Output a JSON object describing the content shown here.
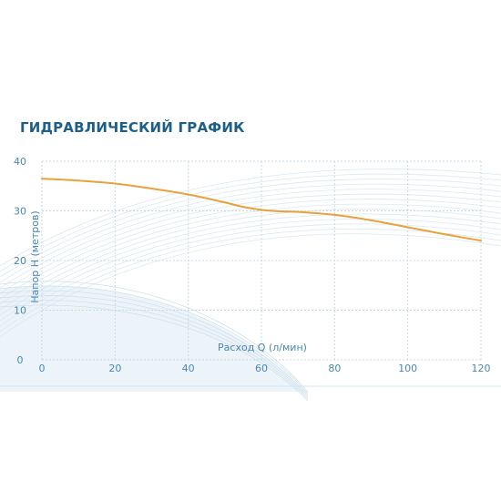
{
  "colors": {
    "title": "#1d5f86",
    "curve": "#e8a23c",
    "grid": "#c9d8e4",
    "ticks": "#4a86b0",
    "wave": "#d6e6f1"
  },
  "chart_data": {
    "type": "line",
    "title": "ГИДРАВЛИЧЕСКИЙ ГРАФИК",
    "xlabel": "Расход Q (л/мин)",
    "ylabel": "Напор Н (метров)",
    "xlim": [
      0,
      120
    ],
    "ylim": [
      0,
      40
    ],
    "x_ticks": [
      "0",
      "20",
      "40",
      "60",
      "80",
      "100",
      "120"
    ],
    "y_ticks": [
      "0",
      "10",
      "20",
      "30",
      "40"
    ],
    "grid": true,
    "series": [
      {
        "x": [
          0,
          10,
          20,
          30,
          40,
          50,
          55,
          60,
          65,
          70,
          80,
          90,
          100,
          110,
          120
        ],
        "y": [
          36.5,
          36.1,
          35.5,
          34.5,
          33.3,
          31.7,
          30.8,
          30.2,
          29.9,
          29.8,
          29.2,
          28.1,
          26.7,
          25.3,
          24.0
        ]
      }
    ]
  }
}
